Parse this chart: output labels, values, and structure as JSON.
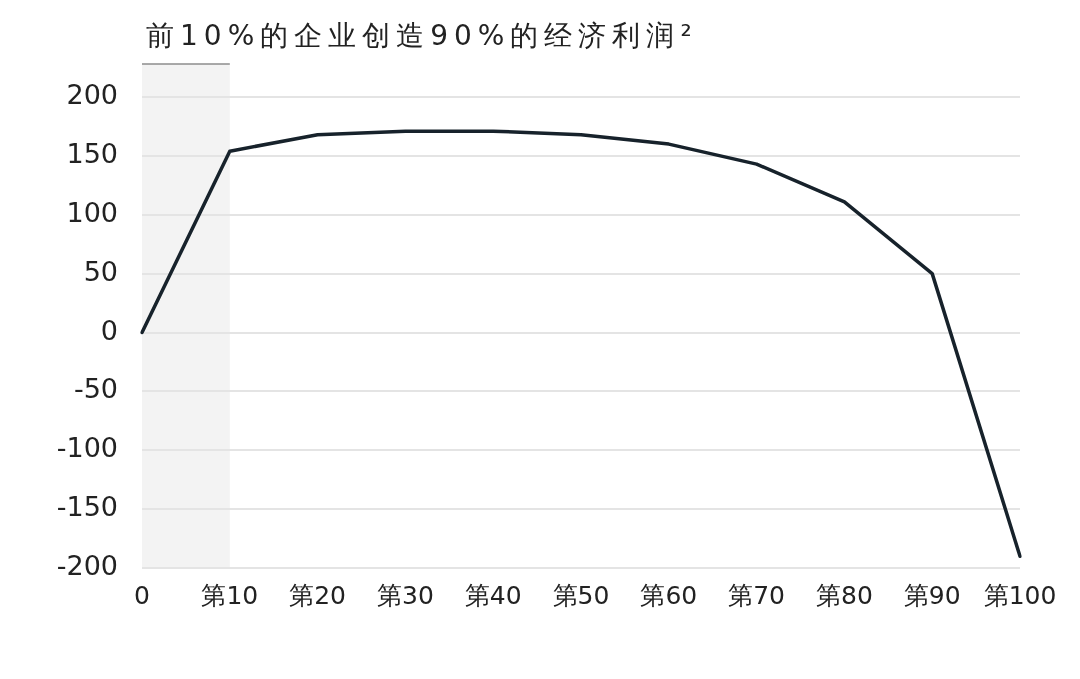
{
  "chart_data": {
    "type": "line",
    "title": "前10%的企业创造90%的经济利润²",
    "categories": [
      "0",
      "第10",
      "第20",
      "第30",
      "第40",
      "第50",
      "第60",
      "第70",
      "第80",
      "第90",
      "第100"
    ],
    "series": [
      {
        "color": "#17222b",
        "values": [
          0,
          154,
          168,
          171,
          171,
          168,
          160,
          143,
          111,
          50,
          -190
        ]
      }
    ],
    "ylim": [
      -200,
      200
    ],
    "yticks": [
      -200,
      -150,
      -100,
      -50,
      0,
      50,
      100,
      150,
      200
    ],
    "grid": "y",
    "bands": [
      {
        "axis": "x",
        "from": "0",
        "to": "第10",
        "color": "#f3f3f3"
      }
    ]
  }
}
